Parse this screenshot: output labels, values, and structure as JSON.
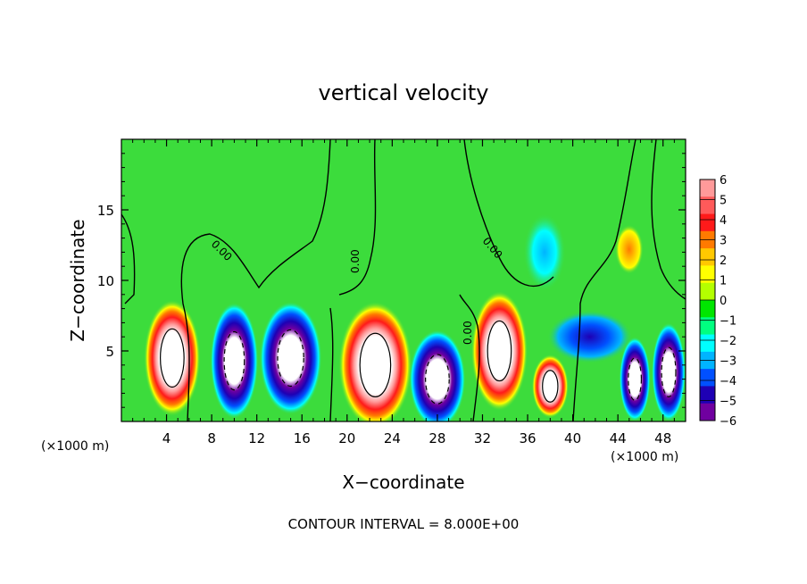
{
  "chart_data": {
    "type": "heatmap",
    "title": "vertical velocity",
    "xlabel": "X−coordinate",
    "ylabel": "Z−coordinate",
    "x_unit": "(×1000 m)",
    "x_unit_right": "(×1000 m)",
    "xlim": [
      0,
      50
    ],
    "ylim": [
      0,
      20
    ],
    "x_ticks": [
      "4",
      "8",
      "12",
      "16",
      "20",
      "24",
      "28",
      "32",
      "36",
      "40",
      "44",
      "48"
    ],
    "y_ticks": [
      "5",
      "10",
      "15"
    ],
    "footer": "CONTOUR INTERVAL = 8.000E+00",
    "contour_labels": [
      "0.00",
      "0.00",
      "0.00",
      "0.00"
    ],
    "colorbar": {
      "levels": [
        6,
        5,
        4,
        3,
        2,
        1,
        0,
        -1,
        -2,
        -3,
        -4,
        -5,
        -6
      ],
      "labels": [
        "6",
        "5",
        "4",
        "3",
        "2",
        "1",
        "0",
        "−1",
        "−2",
        "−3",
        "−4",
        "−5",
        "−6"
      ],
      "colors": [
        "#ff9a9a",
        "#ff5a5a",
        "#ff1a1a",
        "#ff7a00",
        "#ffc800",
        "#ffff00",
        "#b4ff00",
        "#00e600",
        "#00ff80",
        "#00ffff",
        "#00b4ff",
        "#0050ff",
        "#1e00b4",
        "#7000a0"
      ]
    },
    "background_color": "#3cdc3c",
    "features": [
      {
        "type": "updraft",
        "x": 4.5,
        "z": 4.5,
        "rx": 2.0,
        "rz": 3.3,
        "peak": "6"
      },
      {
        "type": "downdraft",
        "x": 10.0,
        "z": 4.3,
        "rx": 1.7,
        "rz": 3.3,
        "peak": "-6"
      },
      {
        "type": "downdraft",
        "x": 15.0,
        "z": 4.5,
        "rx": 2.2,
        "rz": 3.2,
        "peak": "-6"
      },
      {
        "type": "updraft",
        "x": 22.5,
        "z": 4.0,
        "rx": 2.6,
        "rz": 3.6,
        "peak": "6"
      },
      {
        "type": "downdraft",
        "x": 28.0,
        "z": 3.0,
        "rx": 2.0,
        "rz": 2.8,
        "peak": "-6"
      },
      {
        "type": "updraft",
        "x": 33.5,
        "z": 5.0,
        "rx": 2.0,
        "rz": 3.4,
        "peak": "6"
      },
      {
        "type": "updraft",
        "x": 38.0,
        "z": 2.5,
        "rx": 1.3,
        "rz": 1.8,
        "peak": "6"
      },
      {
        "type": "downdraft",
        "x": 41.5,
        "z": 6.0,
        "rx": 3.0,
        "rz": 1.5,
        "peak": "-4"
      },
      {
        "type": "downdraft",
        "x": 45.5,
        "z": 3.0,
        "rx": 1.1,
        "rz": 2.4,
        "peak": "-6"
      },
      {
        "type": "downdraft",
        "x": 48.5,
        "z": 3.5,
        "rx": 1.2,
        "rz": 2.8,
        "peak": "-6"
      },
      {
        "type": "updraft",
        "x": 45.0,
        "z": 12.2,
        "rx": 1.0,
        "rz": 1.4,
        "peak": "3"
      },
      {
        "type": "downdraft",
        "x": 37.5,
        "z": 12.0,
        "rx": 1.5,
        "rz": 2.2,
        "peak": "-2"
      }
    ]
  }
}
